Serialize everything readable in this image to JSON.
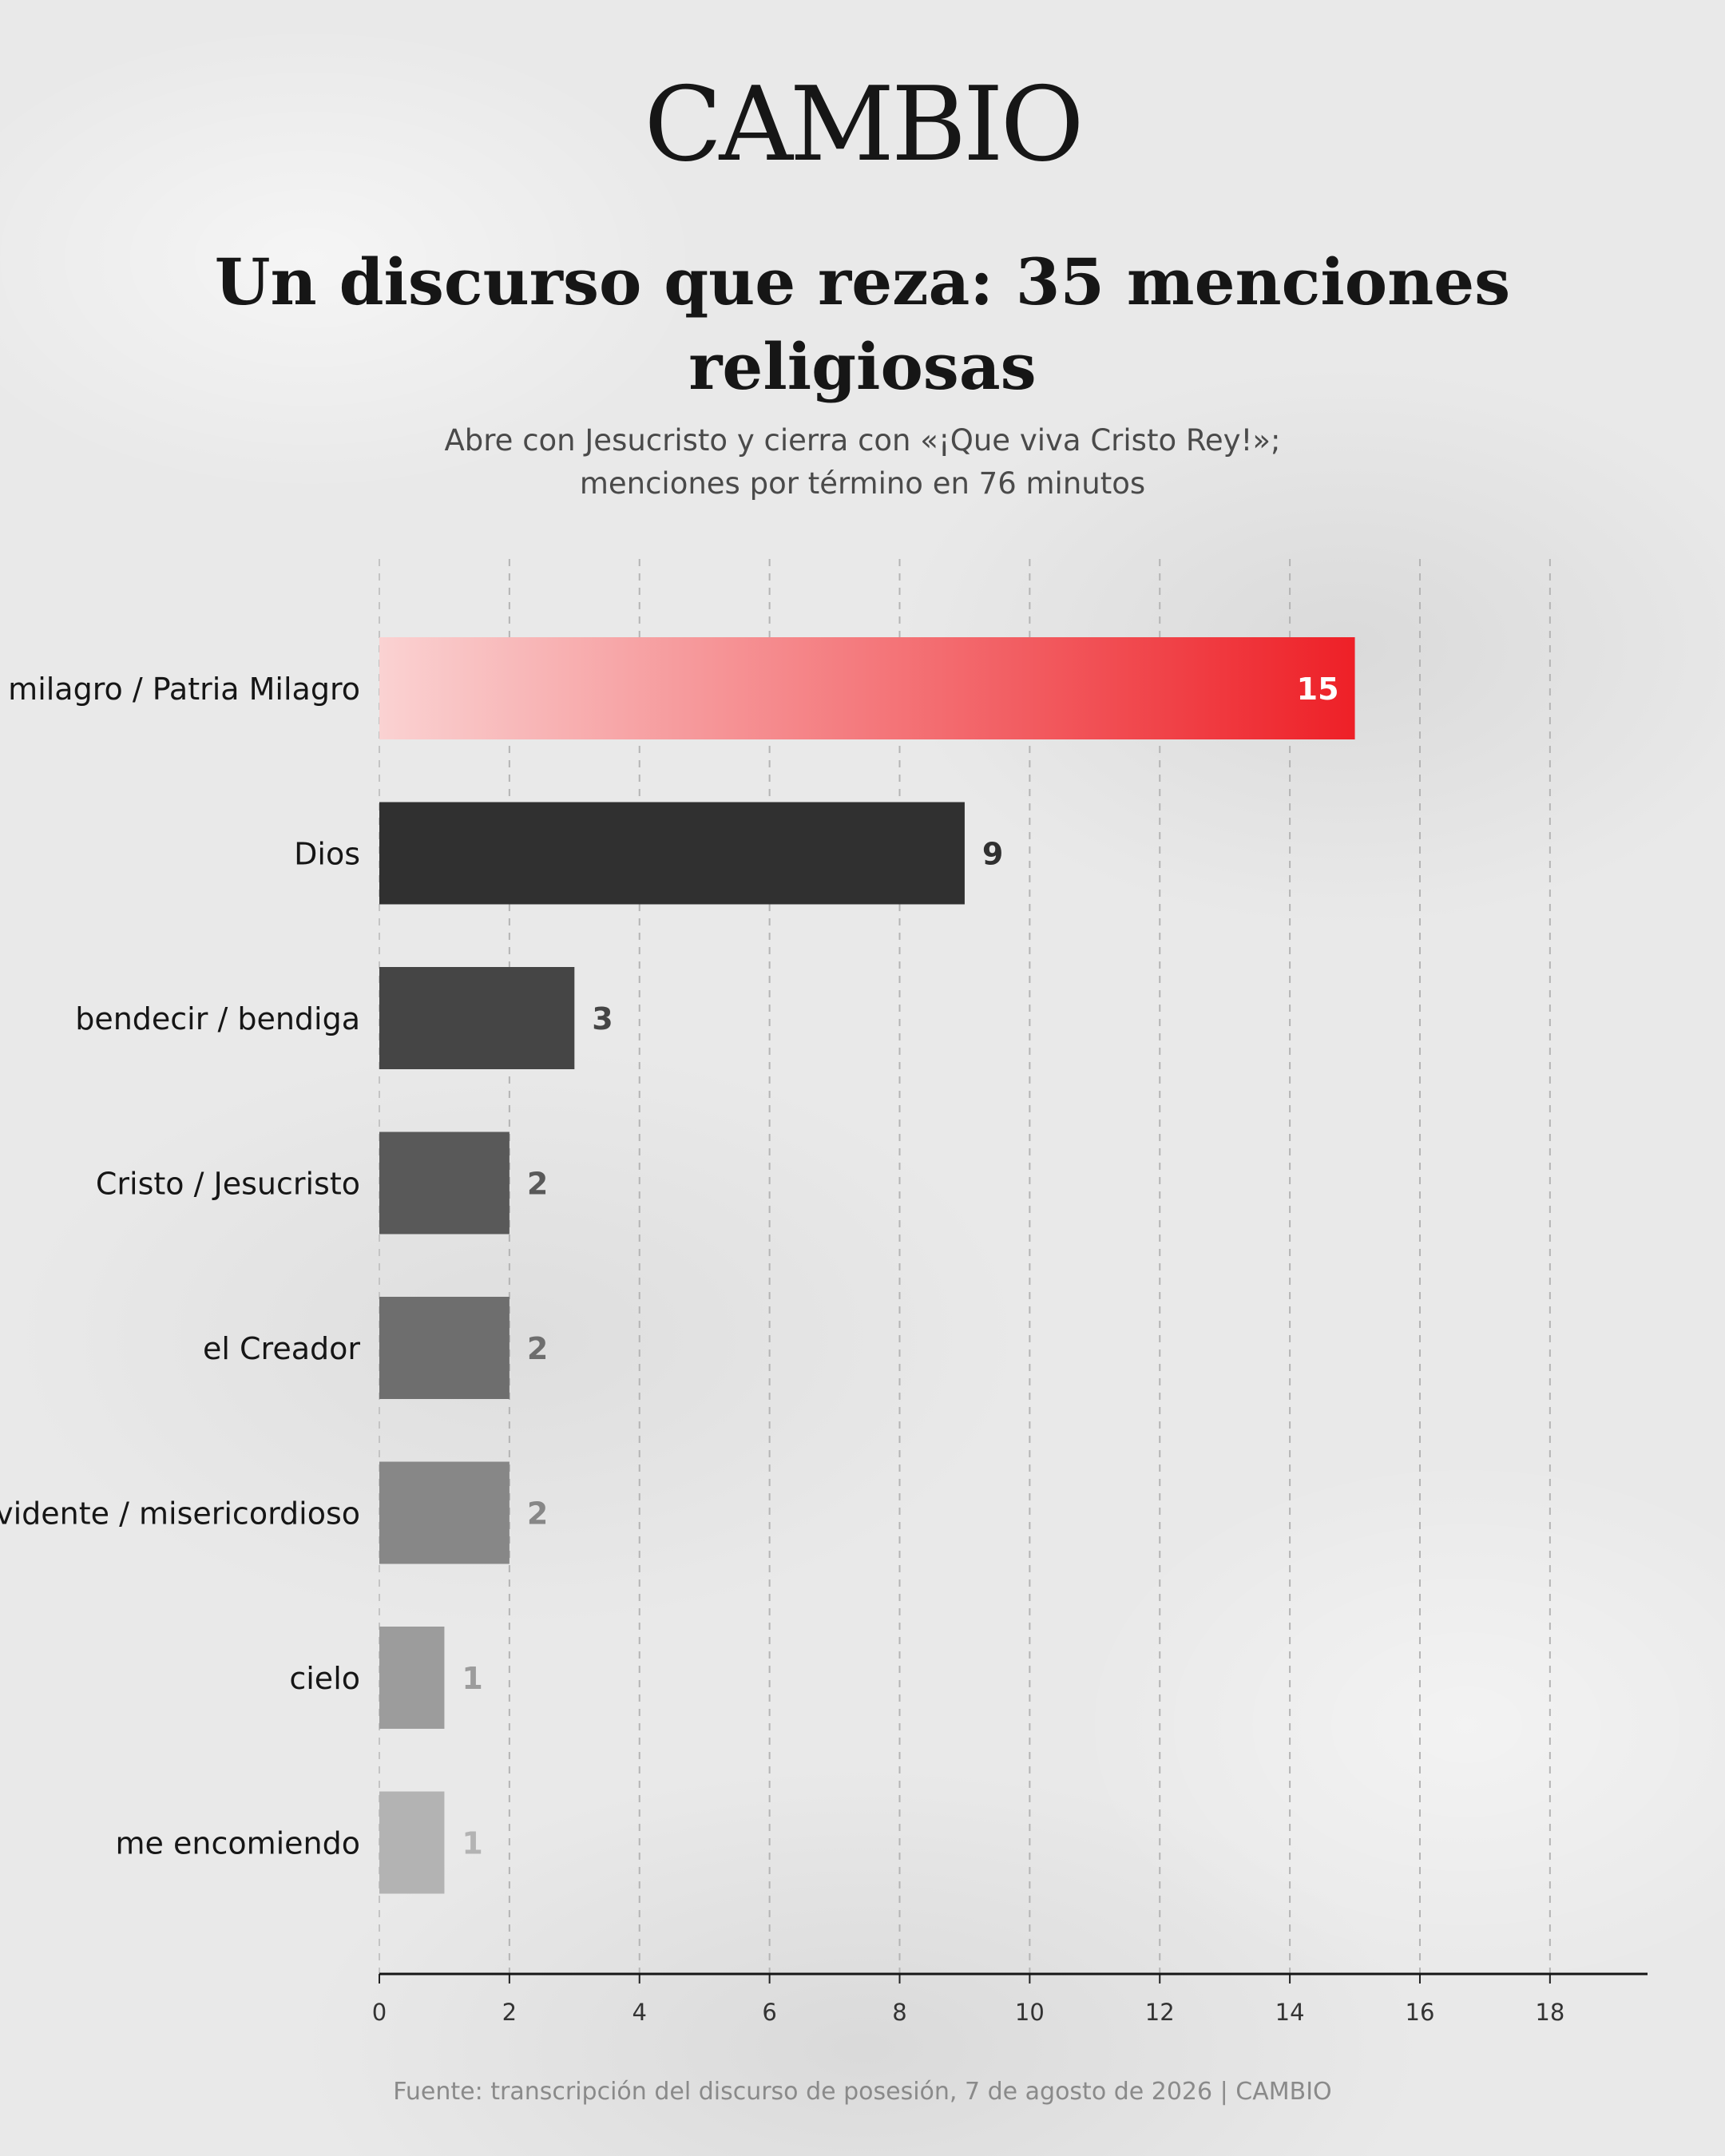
{
  "brand": {
    "logo_text": "CAMBIO",
    "accent_color": "#ee2027"
  },
  "header": {
    "title": "Un discurso que reza: 35 menciones religiosas",
    "subtitle": "Abre con Jesucristo y cierra con «¡Que viva Cristo Rey!»; menciones por término en 76 minutos"
  },
  "chart_data": {
    "type": "bar",
    "orientation": "horizontal",
    "categories": [
      "milagro / Patria Milagro",
      "Dios",
      "bendecir / bendiga",
      "Cristo / Jesucristo",
      "el Creador",
      "providente / misericordioso",
      "cielo",
      "me encomiendo"
    ],
    "values": [
      15,
      9,
      3,
      2,
      2,
      2,
      1,
      1
    ],
    "bar_colors": [
      "#ee2027",
      "#303030",
      "#454545",
      "#595959",
      "#6e6e6e",
      "#878787",
      "#9c9c9c",
      "#b3b3b3"
    ],
    "value_label_colors": [
      "#ffffff",
      "#303030",
      "#454545",
      "#595959",
      "#6e6e6e",
      "#878787",
      "#9c9c9c",
      "#b3b3b3"
    ],
    "highlight_gradient": [
      "#fad2d2",
      "#ee2027"
    ],
    "xticks": [
      0,
      2,
      4,
      6,
      8,
      10,
      12,
      14,
      16,
      18
    ],
    "xlim": [
      0,
      19.5
    ],
    "grid": true,
    "title": "Un discurso que reza: 35 menciones religiosas",
    "xlabel": "",
    "ylabel": ""
  },
  "footer": {
    "source": "Fuente: transcripción del discurso de posesión, 7 de agosto de 2026 | CAMBIO"
  }
}
